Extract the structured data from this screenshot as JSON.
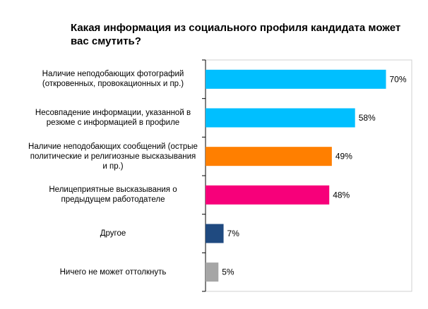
{
  "chart_data": {
    "type": "bar",
    "orientation": "horizontal",
    "title": "Какая информация из социального профиля кандидата может вас смутить?",
    "categories": [
      "Наличие неподобающих фотографий (откровенных, провокационных и пр.)",
      "Несовпадение информации, указанной в резюме с информацией в профиле",
      "Наличие неподобающих сообщений (острые политические и религиозные высказывания и пр.)",
      "Нелицеприятные высказывания о предыдущем работодателе",
      "Другое",
      "Ничего не может оттолкнуть"
    ],
    "values": [
      70,
      58,
      49,
      48,
      7,
      5
    ],
    "data_labels": [
      "70%",
      "58%",
      "49%",
      "48%",
      "7%",
      "5%"
    ],
    "colors": [
      "#00bfff",
      "#00bfff",
      "#ff7f00",
      "#f7007a",
      "#1f4a80",
      "#a6a6a6"
    ],
    "xlim": [
      0,
      80
    ],
    "grid": false,
    "legend": "none"
  }
}
